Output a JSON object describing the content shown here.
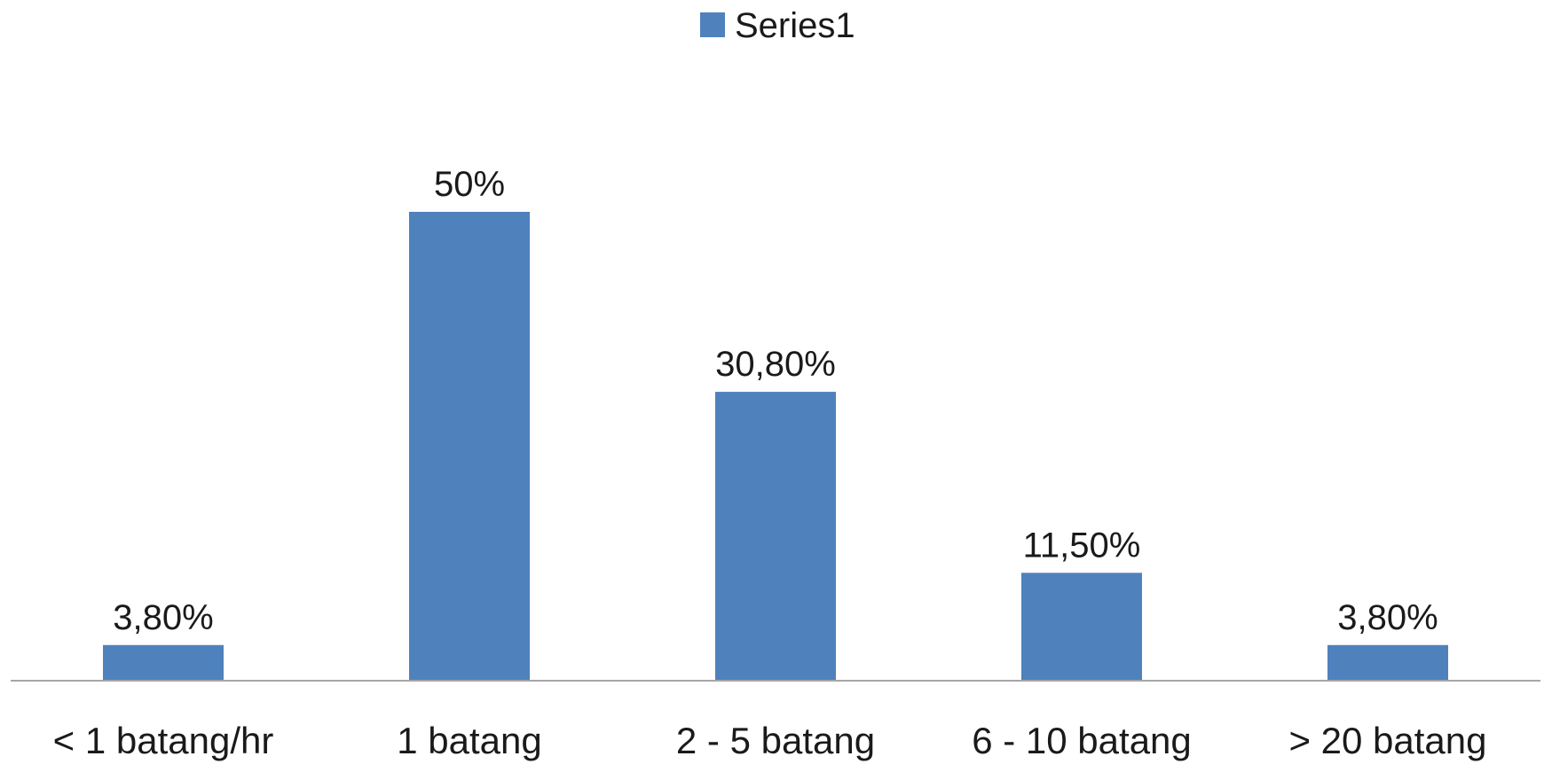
{
  "chart_data": {
    "type": "bar",
    "categories": [
      "< 1 batang/hr",
      "1 batang",
      "2 - 5 batang",
      "6 - 10 batang",
      "> 20 batang"
    ],
    "series": [
      {
        "name": "Series1",
        "values": [
          3.8,
          50,
          30.8,
          11.5,
          3.8
        ],
        "labels": [
          "3,80%",
          "50%",
          "30,80%",
          "11,50%",
          "3,80%"
        ],
        "color": "#4f81bd"
      }
    ],
    "ylim": [
      0,
      55
    ],
    "grid": false,
    "legend_position": "top-center",
    "axis_color": "#a6a6a6"
  }
}
